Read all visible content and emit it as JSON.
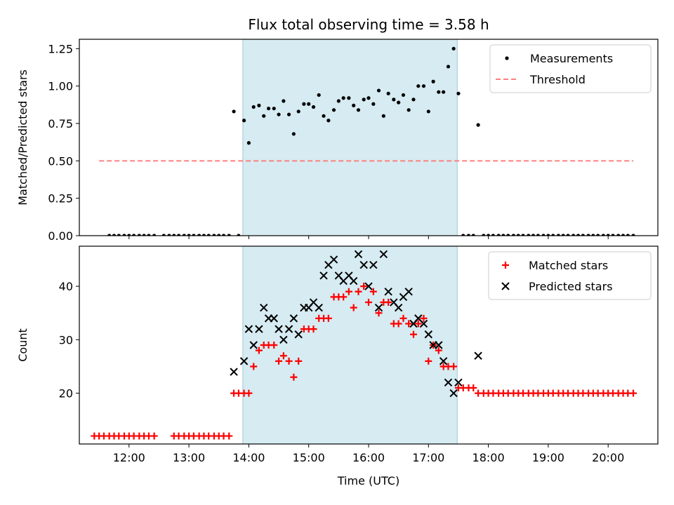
{
  "chart_data": [
    {
      "type": "scatter",
      "title": "Flux total observing time = 3.58 h",
      "xlabel": "",
      "ylabel": "Matched/Predicted stars",
      "xlim": [
        11.17,
        20.83
      ],
      "ylim": [
        0,
        1.3125
      ],
      "yticks": [
        0,
        0.25,
        0.5,
        0.75,
        1.0,
        1.25
      ],
      "ytick_labels": [
        "0.00",
        "0.25",
        "0.50",
        "0.75",
        "1.00",
        "1.25"
      ],
      "xticks": [
        12,
        13,
        14,
        15,
        16,
        17,
        18,
        19,
        20
      ],
      "xtick_labels_visible": false,
      "shaded_span": [
        13.9,
        17.48
      ],
      "legend": {
        "position": "upper-right",
        "entries": [
          "Measurements",
          "Threshold"
        ]
      },
      "series": [
        {
          "name": "Measurements",
          "marker": "point",
          "color": "#000000",
          "x": [
            11.67,
            11.75,
            11.83,
            11.92,
            12.0,
            12.08,
            12.17,
            12.25,
            12.33,
            12.42,
            12.58,
            12.67,
            12.75,
            12.83,
            12.92,
            13.0,
            13.08,
            13.17,
            13.25,
            13.33,
            13.42,
            13.5,
            13.58,
            13.67,
            13.75,
            13.83,
            13.92,
            14.0,
            14.08,
            14.17,
            14.25,
            14.33,
            14.42,
            14.5,
            14.58,
            14.67,
            14.75,
            14.83,
            14.92,
            15.0,
            15.08,
            15.17,
            15.25,
            15.33,
            15.42,
            15.5,
            15.58,
            15.67,
            15.75,
            15.83,
            15.92,
            16.0,
            16.08,
            16.17,
            16.25,
            16.33,
            16.42,
            16.5,
            16.58,
            16.67,
            16.75,
            16.83,
            16.92,
            17.0,
            17.08,
            17.17,
            17.25,
            17.33,
            17.42,
            17.5,
            17.58,
            17.67,
            17.75,
            17.83,
            17.92,
            18.0,
            18.08,
            18.17,
            18.25,
            18.33,
            18.42,
            18.5,
            18.58,
            18.67,
            18.75,
            18.83,
            18.92,
            19.0,
            19.08,
            19.17,
            19.25,
            19.33,
            19.42,
            19.5,
            19.58,
            19.67,
            19.75,
            19.83,
            19.92,
            20.0,
            20.08,
            20.17,
            20.25,
            20.33,
            20.42
          ],
          "y": [
            0,
            0,
            0,
            0,
            0,
            0,
            0,
            0,
            0,
            0,
            0,
            0,
            0,
            0,
            0,
            0,
            0,
            0,
            0,
            0,
            0,
            0,
            0,
            0,
            0.83,
            0,
            0.77,
            0.62,
            0.86,
            0.87,
            0.8,
            0.85,
            0.85,
            0.81,
            0.9,
            0.81,
            0.68,
            0.83,
            0.88,
            0.88,
            0.86,
            0.94,
            0.8,
            0.77,
            0.84,
            0.9,
            0.92,
            0.92,
            0.87,
            0.84,
            0.91,
            0.92,
            0.88,
            0.97,
            0.8,
            0.95,
            0.91,
            0.89,
            0.94,
            0.84,
            0.91,
            1.0,
            1.0,
            0.83,
            1.03,
            0.96,
            0.96,
            1.13,
            1.25,
            0.95,
            0,
            0,
            0,
            0.74,
            0,
            0,
            0,
            0,
            0,
            0,
            0,
            0,
            0,
            0,
            0,
            0,
            0,
            0,
            0,
            0,
            0,
            0,
            0,
            0,
            0,
            0,
            0,
            0,
            0,
            0,
            0,
            0,
            0,
            0,
            0
          ]
        },
        {
          "name": "Threshold",
          "marker": "dashed-line",
          "color": "#ff7f7f",
          "x": [
            11.5,
            20.42
          ],
          "y": [
            0.5,
            0.5
          ]
        }
      ]
    },
    {
      "type": "scatter",
      "title": "",
      "xlabel": "Time (UTC)",
      "ylabel": "Count",
      "xlim": [
        11.17,
        20.83
      ],
      "ylim": [
        10.5,
        47.5
      ],
      "yticks": [
        20,
        30,
        40
      ],
      "ytick_labels": [
        "20",
        "30",
        "40"
      ],
      "xticks": [
        12,
        13,
        14,
        15,
        16,
        17,
        18,
        19,
        20
      ],
      "xtick_labels": [
        "12:00",
        "13:00",
        "14:00",
        "15:00",
        "16:00",
        "17:00",
        "18:00",
        "19:00",
        "20:00"
      ],
      "shaded_span": [
        13.9,
        17.48
      ],
      "legend": {
        "position": "upper-right",
        "entries": [
          "Matched stars",
          "Predicted stars"
        ]
      },
      "series": [
        {
          "name": "Matched stars",
          "marker": "plus",
          "color": "#ff0000",
          "x": [
            11.42,
            11.5,
            11.58,
            11.67,
            11.75,
            11.83,
            11.92,
            12.0,
            12.08,
            12.17,
            12.25,
            12.33,
            12.42,
            12.75,
            12.83,
            12.92,
            13.0,
            13.08,
            13.17,
            13.25,
            13.33,
            13.42,
            13.5,
            13.58,
            13.67,
            13.75,
            13.83,
            13.92,
            14.0,
            14.08,
            14.17,
            14.25,
            14.33,
            14.42,
            14.5,
            14.58,
            14.67,
            14.75,
            14.83,
            14.92,
            15.0,
            15.08,
            15.17,
            15.25,
            15.33,
            15.42,
            15.5,
            15.58,
            15.67,
            15.75,
            15.83,
            15.92,
            16.0,
            16.08,
            16.17,
            16.25,
            16.33,
            16.42,
            16.5,
            16.58,
            16.67,
            16.75,
            16.83,
            16.92,
            17.0,
            17.08,
            17.17,
            17.25,
            17.33,
            17.42,
            17.5,
            17.58,
            17.67,
            17.75,
            17.83,
            17.92,
            18.0,
            18.08,
            18.17,
            18.25,
            18.33,
            18.42,
            18.5,
            18.58,
            18.67,
            18.75,
            18.83,
            18.92,
            19.0,
            19.08,
            19.17,
            19.25,
            19.33,
            19.42,
            19.5,
            19.58,
            19.67,
            19.75,
            19.83,
            19.92,
            20.0,
            20.08,
            20.17,
            20.25,
            20.33,
            20.42
          ],
          "y": [
            12,
            12,
            12,
            12,
            12,
            12,
            12,
            12,
            12,
            12,
            12,
            12,
            12,
            12,
            12,
            12,
            12,
            12,
            12,
            12,
            12,
            12,
            12,
            12,
            12,
            20,
            20,
            20,
            20,
            25,
            28,
            29,
            29,
            29,
            26,
            27,
            26,
            23,
            26,
            32,
            32,
            32,
            34,
            34,
            34,
            38,
            38,
            38,
            39,
            36,
            39,
            40,
            37,
            39,
            35,
            37,
            37,
            33,
            33,
            34,
            33,
            31,
            33,
            34,
            26,
            29,
            28,
            25,
            25,
            25,
            21,
            21,
            21,
            21,
            20,
            20,
            20,
            20,
            20,
            20,
            20,
            20,
            20,
            20,
            20,
            20,
            20,
            20,
            20,
            20,
            20,
            20,
            20,
            20,
            20,
            20,
            20,
            20,
            20,
            20,
            20,
            20,
            20,
            20,
            20,
            20
          ]
        },
        {
          "name": "Predicted stars",
          "marker": "x",
          "color": "#000000",
          "x": [
            13.75,
            13.92,
            14.0,
            14.08,
            14.17,
            14.25,
            14.33,
            14.42,
            14.5,
            14.58,
            14.67,
            14.75,
            14.83,
            14.92,
            15.0,
            15.08,
            15.17,
            15.25,
            15.33,
            15.42,
            15.5,
            15.58,
            15.67,
            15.75,
            15.83,
            15.92,
            16.0,
            16.08,
            16.17,
            16.25,
            16.33,
            16.42,
            16.5,
            16.58,
            16.67,
            16.75,
            16.83,
            16.92,
            17.0,
            17.08,
            17.17,
            17.25,
            17.33,
            17.42,
            17.5,
            17.83
          ],
          "y": [
            24,
            26,
            32,
            29,
            32,
            36,
            34,
            34,
            32,
            30,
            32,
            34,
            31,
            36,
            36,
            37,
            36,
            42,
            44,
            45,
            42,
            41,
            42,
            41,
            46,
            44,
            40,
            44,
            36,
            46,
            39,
            37,
            36,
            38,
            39,
            33,
            34,
            33,
            31,
            29,
            29,
            26,
            22,
            20,
            22,
            27
          ]
        }
      ]
    }
  ]
}
